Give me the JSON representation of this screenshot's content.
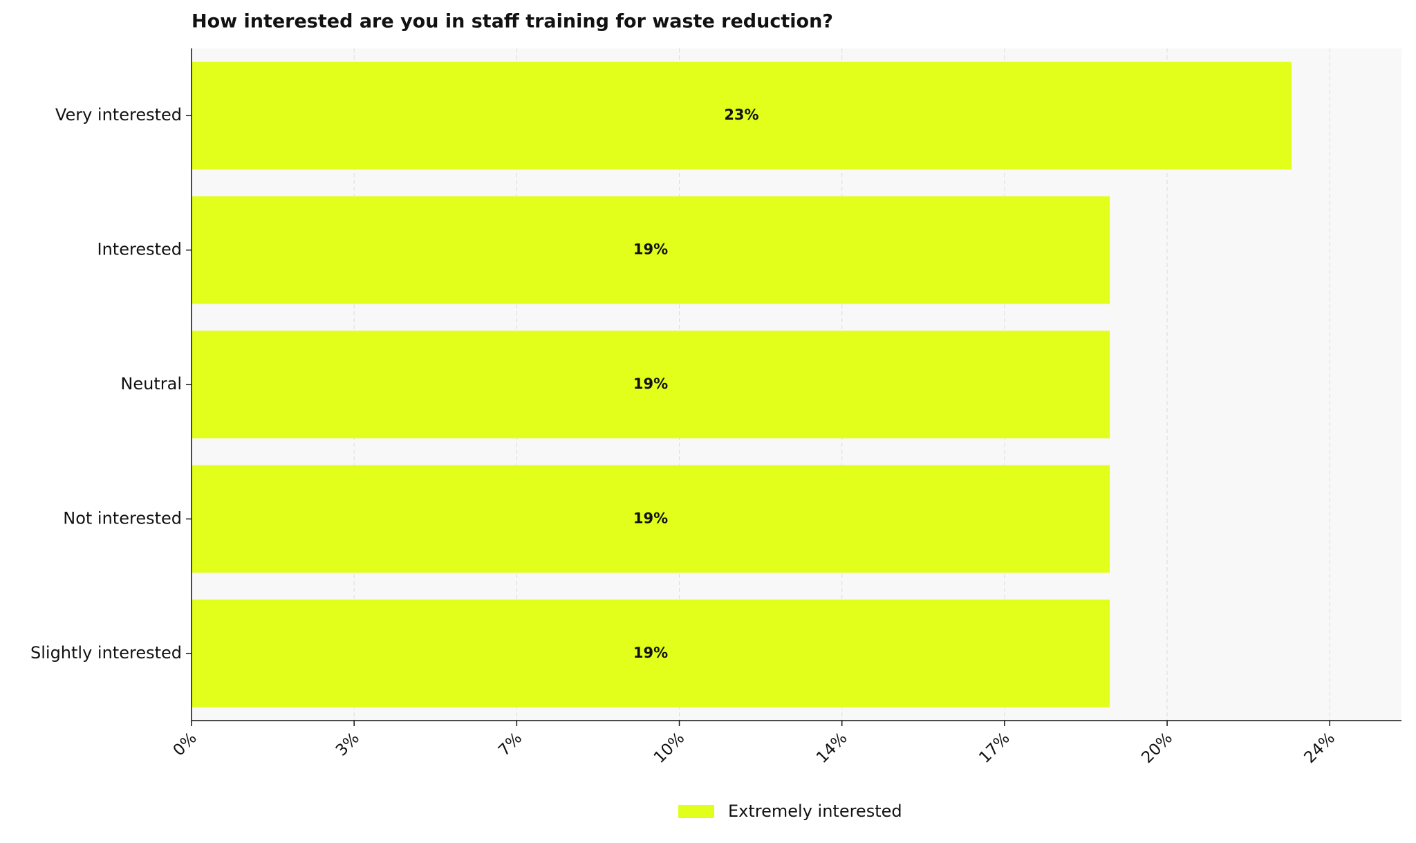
{
  "chart_data": {
    "type": "barh",
    "title": "How interested are you in staff training for waste reduction?",
    "categories": [
      "Very interested",
      "Interested",
      "Neutral",
      "Not interested",
      "Slightly interested"
    ],
    "series": [
      {
        "name": "Extremely interested",
        "color": "#e1ff1a",
        "values": [
          23,
          19.2,
          19.2,
          19.2,
          19.2
        ],
        "value_labels": [
          "23%",
          "19%",
          "19%",
          "19%",
          "19%"
        ]
      }
    ],
    "xlim": [
      0,
      25.3
    ],
    "xticks": [
      {
        "value": 0,
        "label": "0%"
      },
      {
        "value": 3.4,
        "label": "3%"
      },
      {
        "value": 6.8,
        "label": "7%"
      },
      {
        "value": 10.2,
        "label": "10%"
      },
      {
        "value": 13.6,
        "label": "14%"
      },
      {
        "value": 17,
        "label": "17%"
      },
      {
        "value": 20.4,
        "label": "20%"
      },
      {
        "value": 23.8,
        "label": "24%"
      }
    ],
    "grid": true,
    "legend": "bottom"
  }
}
